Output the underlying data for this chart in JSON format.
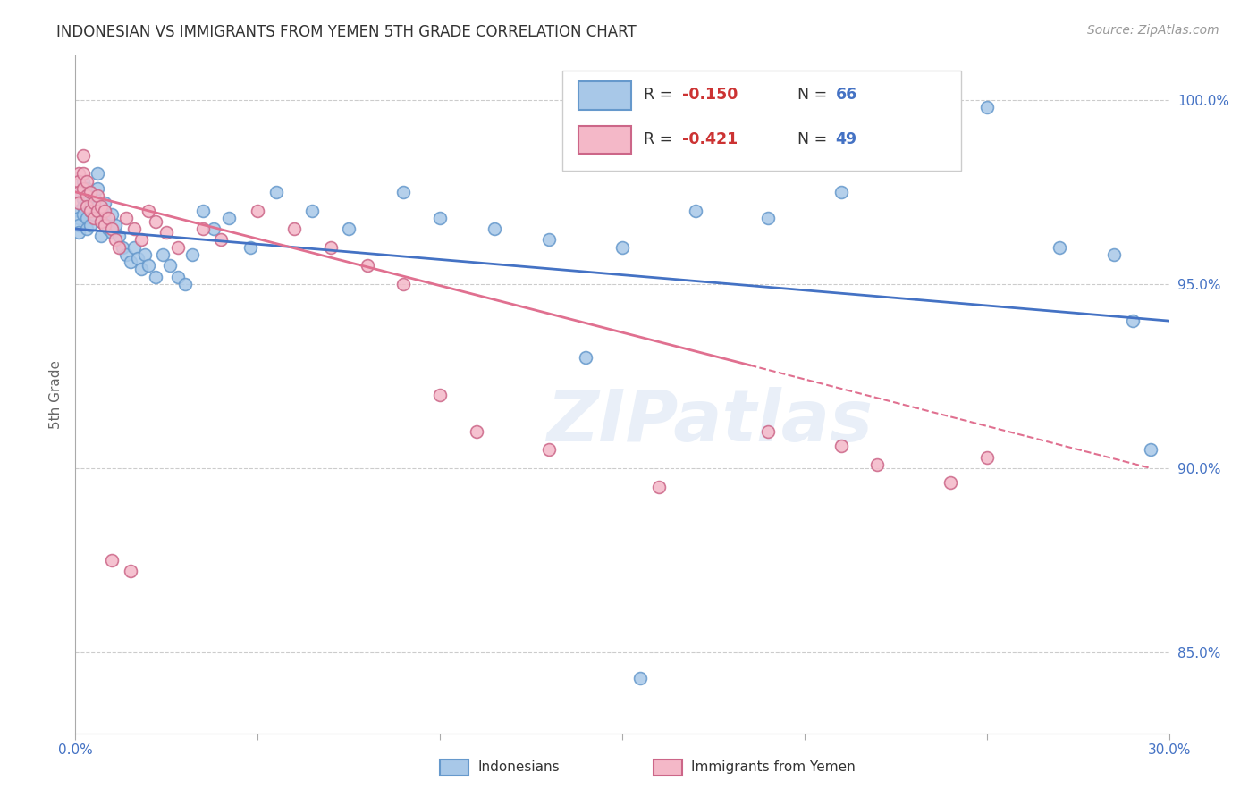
{
  "title": "INDONESIAN VS IMMIGRANTS FROM YEMEN 5TH GRADE CORRELATION CHART",
  "source": "Source: ZipAtlas.com",
  "ylabel": "5th Grade",
  "xlim": [
    0.0,
    0.3
  ],
  "ylim": [
    0.828,
    1.012
  ],
  "xticks": [
    0.0,
    0.05,
    0.1,
    0.15,
    0.2,
    0.25,
    0.3
  ],
  "yticks": [
    0.85,
    0.9,
    0.95,
    1.0
  ],
  "blue_color": "#a8c8e8",
  "blue_edge": "#6699cc",
  "pink_color": "#f4b8c8",
  "pink_edge": "#cc6688",
  "blue_line_color": "#4472c4",
  "pink_line_color": "#e07090",
  "watermark": "ZIPatlas",
  "blue_R": "-0.150",
  "blue_N": "66",
  "pink_R": "-0.421",
  "pink_N": "49",
  "blue_x": [
    0.001,
    0.001,
    0.001,
    0.001,
    0.001,
    0.002,
    0.002,
    0.002,
    0.002,
    0.003,
    0.003,
    0.003,
    0.003,
    0.004,
    0.004,
    0.004,
    0.005,
    0.005,
    0.006,
    0.006,
    0.006,
    0.007,
    0.007,
    0.008,
    0.008,
    0.009,
    0.01,
    0.01,
    0.011,
    0.012,
    0.013,
    0.014,
    0.015,
    0.016,
    0.017,
    0.018,
    0.019,
    0.02,
    0.022,
    0.024,
    0.026,
    0.028,
    0.03,
    0.032,
    0.035,
    0.038,
    0.042,
    0.048,
    0.055,
    0.065,
    0.075,
    0.09,
    0.1,
    0.115,
    0.13,
    0.15,
    0.17,
    0.19,
    0.21,
    0.25,
    0.27,
    0.29,
    0.295,
    0.285,
    0.155,
    0.14
  ],
  "blue_y": [
    0.975,
    0.97,
    0.968,
    0.966,
    0.964,
    0.978,
    0.973,
    0.971,
    0.969,
    0.976,
    0.972,
    0.968,
    0.965,
    0.975,
    0.97,
    0.966,
    0.974,
    0.969,
    0.98,
    0.976,
    0.971,
    0.967,
    0.963,
    0.972,
    0.967,
    0.965,
    0.969,
    0.964,
    0.966,
    0.963,
    0.96,
    0.958,
    0.956,
    0.96,
    0.957,
    0.954,
    0.958,
    0.955,
    0.952,
    0.958,
    0.955,
    0.952,
    0.95,
    0.958,
    0.97,
    0.965,
    0.968,
    0.96,
    0.975,
    0.97,
    0.965,
    0.975,
    0.968,
    0.965,
    0.962,
    0.96,
    0.97,
    0.968,
    0.975,
    0.998,
    0.96,
    0.94,
    0.905,
    0.958,
    0.843,
    0.93
  ],
  "pink_x": [
    0.001,
    0.001,
    0.001,
    0.001,
    0.002,
    0.002,
    0.002,
    0.003,
    0.003,
    0.003,
    0.004,
    0.004,
    0.005,
    0.005,
    0.006,
    0.006,
    0.007,
    0.007,
    0.008,
    0.008,
    0.009,
    0.01,
    0.011,
    0.012,
    0.014,
    0.016,
    0.018,
    0.02,
    0.022,
    0.025,
    0.028,
    0.035,
    0.04,
    0.05,
    0.06,
    0.07,
    0.08,
    0.09,
    0.1,
    0.11,
    0.13,
    0.16,
    0.19,
    0.21,
    0.22,
    0.24,
    0.25,
    0.01,
    0.015
  ],
  "pink_y": [
    0.98,
    0.978,
    0.975,
    0.972,
    0.985,
    0.98,
    0.976,
    0.978,
    0.974,
    0.971,
    0.975,
    0.97,
    0.972,
    0.968,
    0.974,
    0.97,
    0.971,
    0.967,
    0.97,
    0.966,
    0.968,
    0.965,
    0.962,
    0.96,
    0.968,
    0.965,
    0.962,
    0.97,
    0.967,
    0.964,
    0.96,
    0.965,
    0.962,
    0.97,
    0.965,
    0.96,
    0.955,
    0.95,
    0.92,
    0.91,
    0.905,
    0.895,
    0.91,
    0.906,
    0.901,
    0.896,
    0.903,
    0.875,
    0.872
  ],
  "pink_line_solid_end": 0.185,
  "pink_line_dash_start": 0.185,
  "pink_line_end": 0.295
}
